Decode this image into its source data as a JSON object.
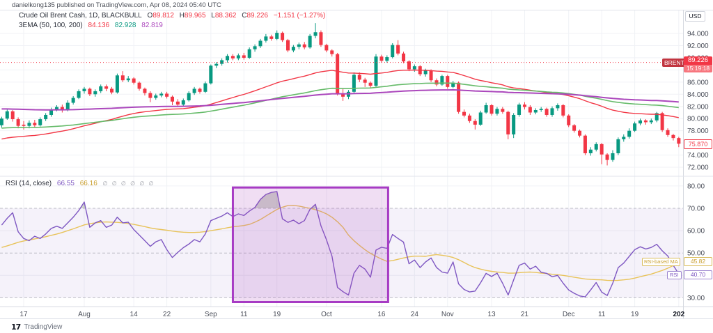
{
  "publish_bar": {
    "text": "danielkong135 published on TradingView.com, Apr 08, 2024 05:40 UTC"
  },
  "main_legend": {
    "title": "Crude Oil Brent Cash, 1D, BLACKBULL",
    "o_label": "O",
    "o": "89.812",
    "h_label": "H",
    "h": "89.965",
    "l_label": "L",
    "l": "88.362",
    "c_label": "C",
    "c": "89.226",
    "change": "−1.151 (−1.27%)"
  },
  "ema_legend": {
    "title": "3EMA (50, 100, 200)",
    "v50": "84.136",
    "v100": "82.928",
    "v200": "82.819"
  },
  "rsi_legend": {
    "title": "RSI (14, close)",
    "v1": "66.55",
    "v2": "66.16",
    "empties": "∅ ∅ ∅ ∅ ∅ ∅"
  },
  "axis": {
    "currency": "USD",
    "symbol_badge": {
      "label": "BRENT",
      "price": "89.226",
      "countdown": "15:19:18"
    },
    "last_price_badge": "75.870",
    "rsi_ma_badge": {
      "label": "RSI-based MA",
      "value": "45.82"
    },
    "rsi_badge": {
      "label": "RSI",
      "value": "40.70"
    }
  },
  "footer": {
    "logo_mark": "17",
    "logo_text": "TradingView"
  },
  "colors": {
    "up": "#089981",
    "down": "#f23645",
    "ema50": "#f23645",
    "ema100": "#66bb6a",
    "ema200": "#ab47bc",
    "rsi": "#7e57c2",
    "rsi_ma": "#e8c35a",
    "band": "rgba(126,87,194,0.08)",
    "overbought_fill": "rgba(120,128,110,0.35)",
    "highlight_fill": "rgba(171,71,188,0.18)",
    "highlight_stroke": "#a73bc4",
    "grid": "#f0f2f6",
    "dashed": "#9598a1",
    "axis_text": "#4a4e59",
    "current_line": "#f23645",
    "border": "#d6d9e0",
    "sep": "#e0e3eb"
  },
  "chart_data": {
    "type": "candlestick",
    "title": "Crude Oil Brent Cash, 1D, BLACKBULL",
    "subtitle_indicator": "RSI (14, close) with RSI-based MA",
    "price_axis": {
      "ticks": [
        72,
        74,
        76,
        78,
        80,
        82,
        84,
        86,
        88,
        90,
        92,
        94
      ],
      "top_price": 97.9,
      "bottom_price": 70.6
    },
    "rsi_axis": {
      "ticks": [
        30,
        40,
        50,
        60,
        70,
        80
      ],
      "solid_ticks": [
        40,
        60,
        80
      ],
      "dashed_levels": [
        30,
        50,
        70
      ],
      "band": [
        30,
        70
      ]
    },
    "current_price": 89.226,
    "last_close": 75.87,
    "x_labels": [
      {
        "t": "17",
        "i": 4
      },
      {
        "t": "Aug",
        "i": 15
      },
      {
        "t": "14",
        "i": 24
      },
      {
        "t": "22",
        "i": 30
      },
      {
        "t": "Sep",
        "i": 38
      },
      {
        "t": "11",
        "i": 44
      },
      {
        "t": "19",
        "i": 50
      },
      {
        "t": "Oct",
        "i": 59
      },
      {
        "t": "16",
        "i": 69
      },
      {
        "t": "24",
        "i": 75
      },
      {
        "t": "Nov",
        "i": 81
      },
      {
        "t": "13",
        "i": 89
      },
      {
        "t": "21",
        "i": 95
      },
      {
        "t": "Dec",
        "i": 103
      },
      {
        "t": "11",
        "i": 109
      },
      {
        "t": "19",
        "i": 115
      },
      {
        "t": "202",
        "i": 123,
        "b": 1
      }
    ],
    "candles": [
      [
        78.9,
        80.3,
        78.5,
        80.0
      ],
      [
        80.0,
        81.5,
        79.8,
        81.2
      ],
      [
        81.2,
        81.4,
        79.5,
        79.9
      ],
      [
        79.9,
        80.2,
        78.4,
        78.8
      ],
      [
        79.0,
        79.6,
        78.2,
        78.8
      ],
      [
        78.8,
        79.7,
        78.4,
        79.3
      ],
      [
        79.3,
        79.8,
        78.6,
        78.9
      ],
      [
        78.9,
        80.2,
        78.7,
        79.9
      ],
      [
        79.9,
        80.9,
        79.6,
        80.6
      ],
      [
        80.6,
        81.8,
        80.3,
        81.5
      ],
      [
        81.5,
        82.2,
        81.2,
        81.9
      ],
      [
        81.9,
        82.3,
        81.0,
        81.4
      ],
      [
        81.4,
        83.0,
        81.2,
        82.6
      ],
      [
        82.6,
        83.7,
        82.3,
        83.4
      ],
      [
        83.4,
        84.8,
        83.2,
        84.5
      ],
      [
        84.5,
        85.2,
        84.1,
        84.9
      ],
      [
        84.9,
        85.1,
        83.7,
        84.0
      ],
      [
        84.0,
        84.8,
        83.6,
        84.5
      ],
      [
        84.5,
        85.6,
        84.2,
        85.3
      ],
      [
        85.3,
        85.6,
        84.5,
        84.9
      ],
      [
        84.9,
        85.2,
        84.0,
        84.3
      ],
      [
        84.3,
        87.4,
        84.1,
        87.1
      ],
      [
        87.1,
        87.8,
        86.0,
        86.3
      ],
      [
        86.3,
        87.0,
        86.0,
        86.6
      ],
      [
        86.6,
        86.8,
        85.6,
        85.9
      ],
      [
        85.9,
        86.1,
        84.6,
        84.9
      ],
      [
        84.9,
        85.1,
        83.8,
        84.2
      ],
      [
        84.2,
        84.5,
        82.7,
        83.4
      ],
      [
        83.4,
        84.1,
        83.1,
        83.8
      ],
      [
        83.8,
        84.4,
        83.5,
        84.1
      ],
      [
        84.1,
        84.4,
        83.3,
        83.6
      ],
      [
        83.6,
        83.8,
        82.2,
        82.8
      ],
      [
        82.8,
        83.2,
        81.9,
        82.3
      ],
      [
        82.3,
        83.3,
        82.0,
        83.0
      ],
      [
        83.0,
        84.5,
        82.8,
        84.2
      ],
      [
        84.2,
        85.2,
        83.9,
        84.9
      ],
      [
        84.9,
        85.1,
        84.1,
        84.4
      ],
      [
        84.4,
        86.1,
        84.2,
        85.8
      ],
      [
        85.8,
        88.9,
        85.6,
        88.7
      ],
      [
        88.7,
        89.3,
        88.3,
        89.0
      ],
      [
        89.0,
        89.9,
        88.7,
        89.6
      ],
      [
        89.6,
        90.6,
        89.2,
        90.3
      ],
      [
        90.3,
        90.6,
        89.6,
        89.9
      ],
      [
        89.9,
        90.7,
        89.6,
        90.4
      ],
      [
        90.4,
        90.8,
        89.7,
        90.0
      ],
      [
        90.0,
        91.7,
        89.8,
        91.4
      ],
      [
        91.4,
        92.2,
        91.0,
        91.9
      ],
      [
        91.9,
        93.1,
        91.6,
        92.8
      ],
      [
        92.8,
        93.9,
        92.5,
        93.5
      ],
      [
        93.5,
        93.8,
        92.8,
        93.1
      ],
      [
        93.1,
        94.5,
        92.9,
        94.1
      ],
      [
        94.1,
        94.3,
        92.6,
        92.9
      ],
      [
        92.9,
        93.1,
        90.9,
        91.2
      ],
      [
        91.2,
        92.1,
        90.9,
        91.8
      ],
      [
        91.8,
        92.5,
        91.4,
        92.2
      ],
      [
        92.2,
        92.6,
        91.4,
        91.7
      ],
      [
        91.7,
        93.9,
        91.5,
        93.6
      ],
      [
        93.6,
        95.7,
        93.2,
        94.2
      ],
      [
        94.2,
        94.5,
        91.8,
        92.1
      ],
      [
        92.1,
        92.3,
        90.9,
        91.2
      ],
      [
        91.2,
        91.4,
        90.2,
        90.6
      ],
      [
        90.6,
        90.8,
        83.8,
        84.1
      ],
      [
        84.1,
        84.9,
        82.9,
        83.6
      ],
      [
        83.6,
        84.7,
        83.2,
        84.4
      ],
      [
        84.4,
        87.6,
        84.2,
        87.2
      ],
      [
        87.2,
        87.6,
        86.0,
        86.4
      ],
      [
        86.4,
        86.7,
        85.2,
        85.9
      ],
      [
        85.9,
        86.1,
        85.0,
        85.4
      ],
      [
        85.4,
        90.6,
        85.2,
        90.2
      ],
      [
        90.2,
        90.5,
        89.2,
        89.5
      ],
      [
        89.5,
        90.4,
        89.2,
        90.1
      ],
      [
        90.1,
        92.4,
        89.9,
        92.1
      ],
      [
        92.1,
        92.9,
        90.4,
        90.7
      ],
      [
        90.7,
        91.0,
        89.1,
        89.4
      ],
      [
        89.4,
        89.6,
        87.8,
        88.1
      ],
      [
        88.1,
        88.9,
        87.7,
        88.6
      ],
      [
        88.6,
        88.8,
        87.0,
        87.3
      ],
      [
        87.3,
        88.2,
        86.9,
        87.9
      ],
      [
        87.9,
        88.1,
        86.0,
        86.3
      ],
      [
        86.3,
        86.6,
        85.3,
        85.6
      ],
      [
        85.6,
        87.2,
        85.4,
        87.0
      ],
      [
        87.0,
        87.2,
        84.9,
        85.2
      ],
      [
        85.2,
        86.2,
        85.0,
        85.9
      ],
      [
        85.9,
        86.1,
        80.8,
        81.1
      ],
      [
        81.1,
        81.5,
        80.2,
        80.5
      ],
      [
        80.5,
        80.8,
        79.3,
        79.6
      ],
      [
        79.6,
        79.9,
        78.2,
        79.0
      ],
      [
        79.0,
        81.3,
        78.8,
        81.0
      ],
      [
        81.0,
        82.6,
        80.8,
        82.2
      ],
      [
        82.2,
        82.4,
        80.5,
        80.8
      ],
      [
        80.8,
        81.9,
        80.5,
        81.6
      ],
      [
        81.6,
        81.9,
        80.8,
        81.1
      ],
      [
        81.1,
        81.3,
        76.6,
        77.4
      ],
      [
        77.4,
        80.9,
        76.8,
        80.6
      ],
      [
        80.6,
        82.6,
        80.3,
        82.3
      ],
      [
        82.3,
        82.7,
        81.5,
        81.9
      ],
      [
        81.9,
        82.2,
        80.6,
        81.0
      ],
      [
        81.0,
        81.7,
        80.7,
        81.4
      ],
      [
        81.4,
        81.9,
        81.1,
        81.6
      ],
      [
        81.6,
        81.8,
        80.3,
        80.6
      ],
      [
        80.6,
        82.0,
        80.3,
        81.7
      ],
      [
        81.7,
        82.5,
        81.3,
        82.2
      ],
      [
        82.2,
        82.4,
        80.2,
        80.5
      ],
      [
        80.5,
        80.7,
        78.6,
        78.9
      ],
      [
        78.9,
        79.1,
        77.7,
        78.0
      ],
      [
        78.0,
        78.2,
        76.9,
        77.2
      ],
      [
        77.2,
        77.4,
        74.0,
        74.3
      ],
      [
        74.3,
        75.3,
        73.9,
        74.9
      ],
      [
        74.9,
        76.1,
        74.6,
        75.8
      ],
      [
        75.8,
        76.0,
        72.5,
        74.1
      ],
      [
        74.1,
        74.3,
        72.3,
        73.2
      ],
      [
        73.2,
        74.8,
        72.9,
        74.3
      ],
      [
        74.3,
        76.9,
        74.0,
        76.6
      ],
      [
        76.6,
        77.4,
        76.2,
        77.0
      ],
      [
        77.0,
        78.4,
        76.7,
        78.0
      ],
      [
        78.0,
        79.5,
        77.8,
        79.2
      ],
      [
        79.2,
        80.0,
        78.9,
        79.7
      ],
      [
        79.7,
        79.9,
        79.0,
        79.4
      ],
      [
        79.4,
        80.0,
        79.1,
        79.7
      ],
      [
        79.7,
        81.1,
        79.4,
        80.9
      ],
      [
        80.9,
        81.1,
        77.8,
        78.1
      ],
      [
        78.1,
        78.4,
        77.0,
        77.3
      ],
      [
        77.3,
        77.5,
        76.4,
        76.8
      ],
      [
        76.8,
        77.0,
        75.3,
        75.87
      ]
    ],
    "ema_periods": [
      50,
      100,
      200
    ],
    "ema_seeds": {
      "e50": 76.5,
      "e100": 78.4,
      "e200": 81.6
    },
    "rsi": [
      62.5,
      65.5,
      68,
      59.5,
      56.5,
      55.5,
      57.5,
      56.5,
      58.5,
      61,
      62,
      61,
      63.5,
      66,
      69,
      72.8,
      61.5,
      63.5,
      64.5,
      61.5,
      62.5,
      66,
      63.5,
      63.8,
      60.5,
      58,
      55.5,
      53,
      55,
      56,
      51.5,
      48,
      50.3,
      52.4,
      54,
      56,
      55,
      58.5,
      64.5,
      65.5,
      66.5,
      68,
      66.3,
      67.5,
      66.8,
      68.8,
      70.4,
      74,
      76.2,
      77.1,
      77.5,
      65.3,
      63.7,
      64.7,
      63.1,
      64.5,
      69.5,
      71.8,
      62.2,
      55.9,
      48.6,
      34.6,
      32.7,
      31.2,
      41,
      44.5,
      42.8,
      39.2,
      51.3,
      52.6,
      52.1,
      58.3,
      56.5,
      54.9,
      45.2,
      46.9,
      43.5,
      46,
      47.8,
      43.5,
      41.5,
      41,
      46,
      36.2,
      33.7,
      32.6,
      33,
      36.7,
      40.9,
      39.5,
      41,
      36.5,
      31.2,
      38,
      44.5,
      45.5,
      42.8,
      44.1,
      41.4,
      40.9,
      39.4,
      40,
      36.5,
      33.5,
      32,
      30.8,
      30.4,
      33.5,
      36.8,
      32.5,
      31,
      36.5,
      43.5,
      45.5,
      48.5,
      51.5,
      52.8,
      51.8,
      52.5,
      53.9,
      51,
      48.7,
      44.5,
      40.7
    ],
    "rsi_ma": [
      52.5,
      53.2,
      54,
      54.8,
      55.4,
      55.9,
      56.3,
      56.8,
      57.3,
      57.9,
      58.5,
      59.2,
      60,
      60.8,
      61.7,
      62.6,
      63.1,
      63.5,
      63.8,
      63.9,
      63.8,
      63.7,
      63.5,
      63.2,
      62.8,
      62.3,
      61.8,
      61.2,
      60.8,
      60.5,
      60.2,
      59.8,
      59.5,
      59.3,
      59.2,
      59.2,
      59.3,
      59.6,
      60,
      60.4,
      60.8,
      61.3,
      61.7,
      62,
      62.3,
      62.8,
      63.8,
      65,
      66.5,
      68,
      69.5,
      70.5,
      71.2,
      71.3,
      71,
      70.5,
      70,
      69.4,
      68.6,
      67.5,
      66,
      64,
      61.5,
      58,
      55.5,
      53.4,
      51.5,
      49.8,
      48.5,
      47.3,
      46.3,
      46.6,
      47.2,
      47.8,
      48.3,
      48.6,
      48.6,
      48.5,
      49,
      49.3,
      49,
      48.6,
      48,
      47,
      45.8,
      44.5,
      43.5,
      42.8,
      42.2,
      41.8,
      41.5,
      41.3,
      41,
      41,
      41.2,
      41.4,
      41.5,
      41.3,
      41,
      40.8,
      40.5,
      40.3,
      40,
      39.6,
      39.2,
      38.8,
      38.4,
      38.2,
      38.1,
      38,
      37.8,
      37.7,
      37.8,
      38,
      38.3,
      38.8,
      39.4,
      40,
      40.6,
      41.4,
      42.2,
      43.2,
      44.4,
      45.8
    ],
    "highlight_rect": {
      "i_start": 42,
      "i_end": 70.2,
      "rsi_low": 28.1,
      "rsi_high": 79.3
    }
  }
}
